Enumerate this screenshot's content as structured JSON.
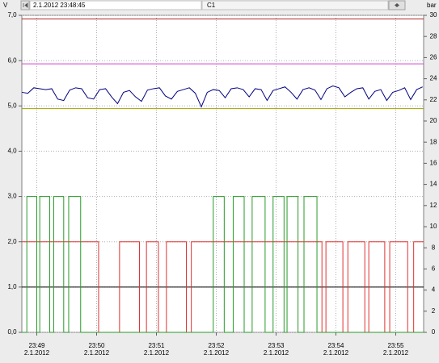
{
  "chart_data": {
    "type": "line",
    "toolbar_time": "2.1.2012 23:48:45",
    "channel": "C1",
    "y_label": "V",
    "y2_label": "bar",
    "xlim": [
      85725,
      86128
    ],
    "xticks": [
      {
        "value": 85740,
        "label": "23:49"
      },
      {
        "value": 85800,
        "label": "23:50"
      },
      {
        "value": 85860,
        "label": "23:51"
      },
      {
        "value": 85920,
        "label": "23:52"
      },
      {
        "value": 85980,
        "label": "23:53"
      },
      {
        "value": 86040,
        "label": "23:54"
      },
      {
        "value": 86100,
        "label": "23:55"
      }
    ],
    "xtick_dates": [
      "2.1.2012",
      "2.1.2012",
      "2.1.2012",
      "2.1.2012",
      "2.1.2012",
      "2.1.2012",
      "2.1.2012"
    ],
    "ylim": [
      0,
      7
    ],
    "yticks": [
      {
        "value": 0,
        "label": "0,0"
      },
      {
        "value": 1,
        "label": "1,0"
      },
      {
        "value": 2,
        "label": "2,0"
      },
      {
        "value": 3,
        "label": "3,0"
      },
      {
        "value": 4,
        "label": "4,0"
      },
      {
        "value": 5,
        "label": "5,0"
      },
      {
        "value": 6,
        "label": "6,0"
      },
      {
        "value": 7,
        "label": "7,0"
      }
    ],
    "y2lim": [
      0,
      30
    ],
    "y2ticks": [
      0,
      2,
      4,
      6,
      8,
      10,
      12,
      14,
      16,
      18,
      20,
      22,
      24,
      26,
      28,
      30
    ],
    "grid": true,
    "series": [
      {
        "color": "#b02820",
        "x": [
          85725,
          86128
        ],
        "values": [
          6.92,
          6.92
        ]
      },
      {
        "color": "#d040d0",
        "x": [
          85725,
          86128
        ],
        "values": [
          5.93,
          5.93
        ]
      },
      {
        "color": "#a0a000",
        "x": [
          85725,
          86128
        ],
        "values": [
          4.94,
          4.94
        ]
      },
      {
        "color": "#000000",
        "x": [
          85725,
          86128
        ],
        "values": [
          1.0,
          1.0
        ]
      },
      {
        "color": "#000080",
        "x": [
          85725,
          85731,
          85737,
          85743,
          85749,
          85755,
          85761,
          85767,
          85773,
          85779,
          85785,
          85791,
          85797,
          85803,
          85809,
          85815,
          85821,
          85827,
          85833,
          85839,
          85845,
          85851,
          85857,
          85863,
          85869,
          85875,
          85881,
          85887,
          85893,
          85899,
          85905,
          85911,
          85917,
          85923,
          85929,
          85935,
          85941,
          85947,
          85953,
          85959,
          85965,
          85971,
          85977,
          85983,
          85989,
          85995,
          86001,
          86007,
          86013,
          86019,
          86025,
          86031,
          86037,
          86043,
          86049,
          86055,
          86061,
          86067,
          86073,
          86079,
          86085,
          86091,
          86097,
          86103,
          86109,
          86115,
          86121,
          86127
        ],
        "values": [
          5.3,
          5.28,
          5.4,
          5.38,
          5.36,
          5.38,
          5.15,
          5.12,
          5.35,
          5.4,
          5.38,
          5.18,
          5.15,
          5.36,
          5.38,
          5.2,
          5.05,
          5.3,
          5.34,
          5.2,
          5.1,
          5.35,
          5.38,
          5.4,
          5.22,
          5.15,
          5.32,
          5.36,
          5.4,
          5.28,
          4.98,
          5.3,
          5.36,
          5.34,
          5.18,
          5.38,
          5.4,
          5.36,
          5.2,
          5.38,
          5.36,
          5.12,
          5.34,
          5.38,
          5.42,
          5.3,
          5.15,
          5.36,
          5.4,
          5.35,
          5.14,
          5.38,
          5.44,
          5.4,
          5.2,
          5.3,
          5.38,
          5.4,
          5.15,
          5.32,
          5.36,
          5.12,
          5.3,
          5.34,
          5.4,
          5.14,
          5.36,
          5.42
        ]
      },
      {
        "color": "#e03030",
        "x": [
          85725,
          85802,
          85802,
          85823,
          85823,
          85843,
          85843,
          85850,
          85850,
          85862,
          85862,
          85870,
          85870,
          85890,
          85890,
          85895,
          85895,
          86026,
          86026,
          86030,
          86030,
          86047,
          86047,
          86052,
          86052,
          86069,
          86069,
          86073,
          86073,
          86089,
          86089,
          86094,
          86094,
          86112,
          86112,
          86118,
          86118,
          86128
        ],
        "values": [
          2,
          2,
          0,
          0,
          2,
          2,
          0,
          0,
          2,
          2,
          0,
          0,
          2,
          2,
          0,
          0,
          2,
          2,
          0,
          0,
          2,
          2,
          0,
          0,
          2,
          2,
          0,
          0,
          2,
          2,
          0,
          0,
          2,
          2,
          0,
          0,
          2,
          2
        ]
      },
      {
        "color": "#2a9a2a",
        "x": [
          85725,
          85730,
          85730,
          85740,
          85740,
          85743,
          85743,
          85753,
          85753,
          85757,
          85757,
          85767,
          85767,
          85772,
          85772,
          85784,
          85784,
          85917,
          85917,
          85928,
          85928,
          85937,
          85937,
          85948,
          85948,
          85956,
          85956,
          85969,
          85969,
          85977,
          85977,
          85988,
          85988,
          85991,
          85991,
          86002,
          86002,
          86008,
          86008,
          86021,
          86021,
          86128
        ],
        "values": [
          0,
          0,
          3,
          3,
          0,
          0,
          3,
          3,
          0,
          0,
          3,
          3,
          0,
          0,
          3,
          3,
          0,
          0,
          3,
          3,
          0,
          0,
          3,
          3,
          0,
          0,
          3,
          3,
          0,
          0,
          3,
          3,
          0,
          0,
          3,
          3,
          0,
          0,
          3,
          3,
          0,
          0
        ]
      }
    ]
  }
}
